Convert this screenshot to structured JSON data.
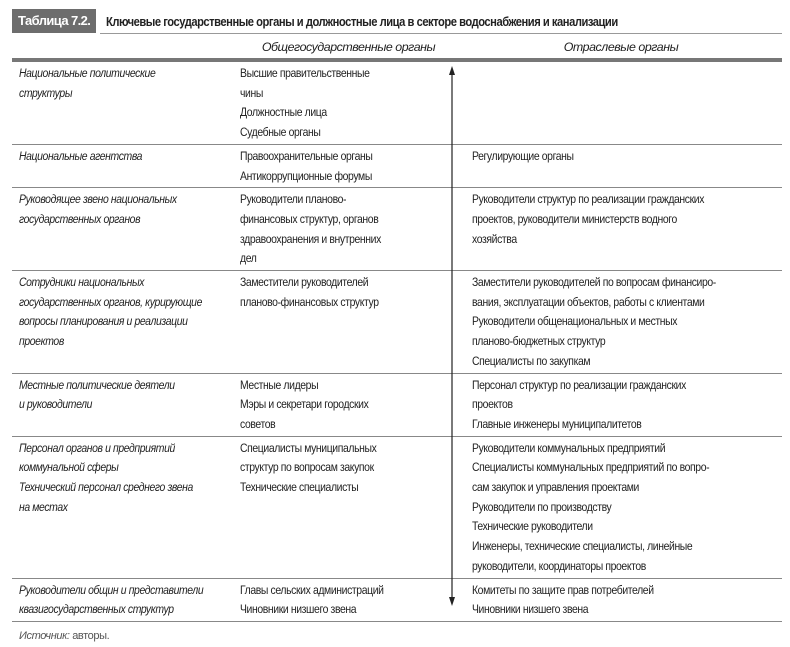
{
  "table_label": "Таблица 7.2.",
  "title": "Ключевые государственные органы и должностные лица в секторе водоснабжения и канализации",
  "headers": [
    "",
    "Общегосударственные органы",
    "Отраслевые органы"
  ],
  "rows": [
    {
      "c1": [
        "Национальные политические",
        "структуры"
      ],
      "c2": [
        "Высшие правительственные",
        "чины",
        "Должностные лица",
        "Судебные органы"
      ],
      "c3": []
    },
    {
      "c1": [
        "Национальные агентства"
      ],
      "c2": [
        "Правоохранительные органы",
        "Антикоррупционные форумы"
      ],
      "c3": [
        "Регулирующие органы"
      ]
    },
    {
      "c1": [
        "Руководящее звено национальных",
        "государственных органов"
      ],
      "c2": [
        "Руководители планово-",
        "финансовых структур, органов",
        "здравоохранения и внутренних",
        "дел"
      ],
      "c3": [
        "Руководители структур по реализации гражданских",
        "проектов, руководители министерств водного",
        "хозяйства"
      ]
    },
    {
      "c1": [
        "Сотрудники национальных",
        "государственных органов, курирующие",
        "вопросы планирования и реализации",
        "проектов"
      ],
      "c2": [
        "Заместители руководителей",
        "планово-финансовых структур"
      ],
      "c3": [
        "Заместители руководителей по вопросам финансиро-",
        "вания, эксплуатации объектов, работы с клиентами",
        "Руководители общенациональных и местных",
        "планово-бюджетных структур",
        "Специалисты по закупкам"
      ]
    },
    {
      "c1": [
        "Местные политические деятели",
        "и руководители"
      ],
      "c2": [
        "Местные лидеры",
        "Мэры и секретари городских",
        "советов"
      ],
      "c3": [
        "Персонал структур по реализации гражданских",
        "проектов",
        "Главные инженеры муниципалитетов"
      ]
    },
    {
      "c1": [
        "Персонал органов и предприятий",
        "коммунальной сферы",
        "Технический персонал среднего звена",
        "на местах"
      ],
      "c2": [
        "Специалисты муниципальных",
        "структур по вопросам закупок",
        "Технические специалисты"
      ],
      "c3": [
        "Руководители коммунальных предприятий",
        "Специалисты коммунальных предприятий по вопро-",
        "сам закупок и управления проектами",
        "Руководители по производству",
        "Технические руководители",
        "Инженеры, технические специалисты, линейные",
        "руководители, координаторы проектов"
      ]
    },
    {
      "c1": [
        "Руководители общин и представители",
        "квазигосударственных структур"
      ],
      "c2": [
        "Главы сельских администраций",
        "Чиновники низшего звена"
      ],
      "c3": [
        "Комитеты по защите прав потребителей",
        "Чиновники низшего звена"
      ]
    }
  ],
  "source": {
    "label": "Источник:",
    "text": " авторы."
  },
  "colors": {
    "badge": "#6d6d6d",
    "rule": "#777777"
  }
}
